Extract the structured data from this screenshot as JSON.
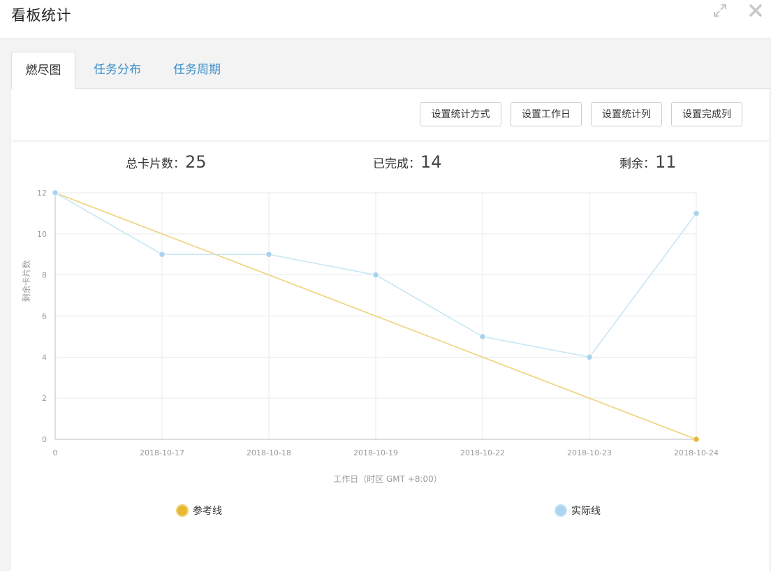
{
  "header": {
    "title": "看板统计",
    "expand_icon": "expand-arrows-icon",
    "close_icon": "close-x-icon"
  },
  "tabs": [
    {
      "label": "燃尽图",
      "active": true
    },
    {
      "label": "任务分布",
      "active": false
    },
    {
      "label": "任务周期",
      "active": false
    }
  ],
  "toolbar": {
    "buttons": [
      "设置统计方式",
      "设置工作日",
      "设置统计列",
      "设置完成列"
    ]
  },
  "stats": {
    "total_label": "总卡片数：",
    "total_value": "25",
    "done_label": "已完成：",
    "done_value": "14",
    "remaining_label": "剩余：",
    "remaining_value": "11"
  },
  "colors": {
    "reference_line": "#f0d27a",
    "reference_dot": "#e8b830",
    "actual_line": "#c8e6f5",
    "actual_dot": "#a9d3ef",
    "tab_link": "#3a8ec9"
  },
  "chart_data": {
    "type": "line",
    "categories": [
      "0",
      "2018-10-17",
      "2018-10-18",
      "2018-10-19",
      "2018-10-22",
      "2018-10-23",
      "2018-10-24"
    ],
    "series": [
      {
        "name": "参考线",
        "values": [
          12,
          10,
          8,
          6,
          4,
          2,
          0
        ]
      },
      {
        "name": "实际线",
        "values": [
          12,
          9,
          9,
          8,
          5,
          4,
          11
        ]
      }
    ],
    "xlabel": "工作日（时区 GMT +8:00）",
    "ylabel": "剩余卡片数",
    "ylim": [
      0,
      12
    ],
    "yticks": [
      0,
      2,
      4,
      6,
      8,
      10,
      12
    ],
    "grid": true,
    "legend_position": "bottom"
  }
}
